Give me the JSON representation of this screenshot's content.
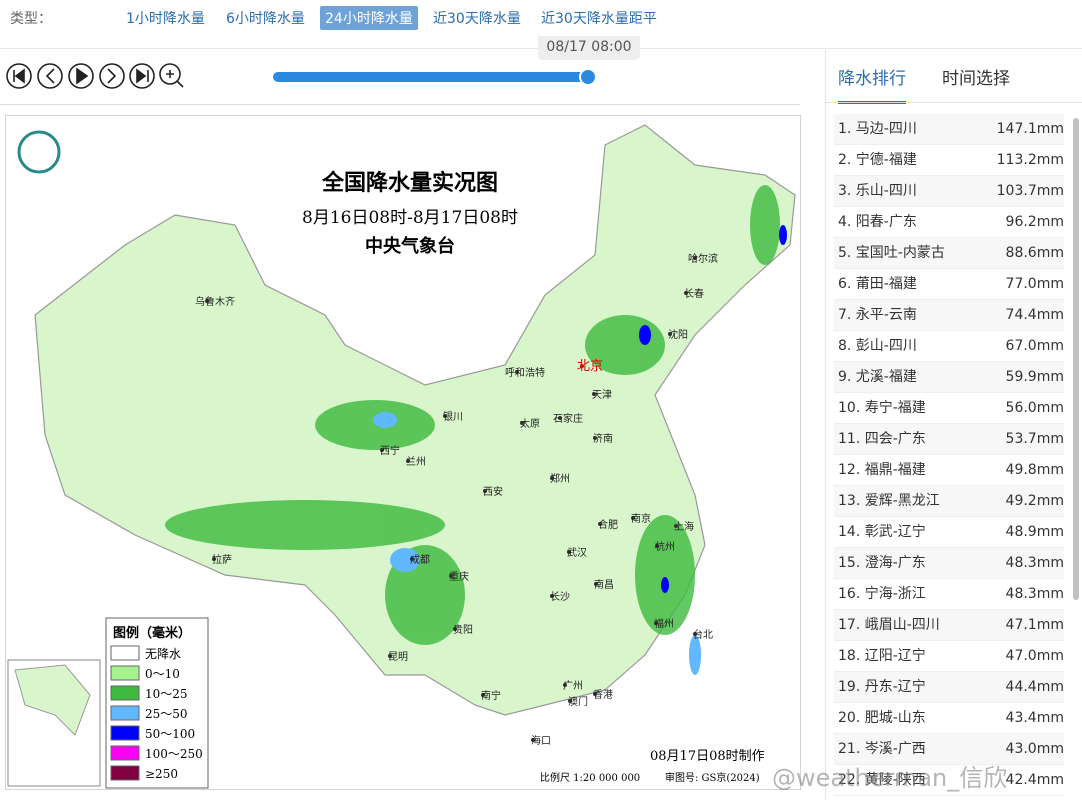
{
  "toolbar": {
    "label": "类型：",
    "tabs": [
      "1小时降水量",
      "6小时降水量",
      "24小时降水量",
      "近30天降水量",
      "近30天降水量距平"
    ],
    "active_tab": 2
  },
  "player": {
    "time": "08/17 08:00"
  },
  "map": {
    "title": "全国降水量实况图",
    "subtitle": "8月16日08时-8月17日08时",
    "agency": "中央气象台",
    "cities": [
      "乌鲁木齐",
      "哈尔滨",
      "长春",
      "沈阳",
      "北京",
      "呼和浩特",
      "天津",
      "银川",
      "太原",
      "石家庄",
      "济南",
      "西宁",
      "兰州",
      "西安",
      "郑州",
      "合肥",
      "南京",
      "上海",
      "拉萨",
      "成都",
      "武汉",
      "杭州",
      "重庆",
      "南昌",
      "长沙",
      "福州",
      "台北",
      "贵阳",
      "昆明",
      "南宁",
      "广州",
      "澳门",
      "香港",
      "海口"
    ],
    "legend": {
      "title": "图例（毫米）",
      "items": [
        {
          "label": "无降水",
          "color": "#ffffff"
        },
        {
          "label": "0～10",
          "color": "#a6f28f"
        },
        {
          "label": "10～25",
          "color": "#3dba3d"
        },
        {
          "label": "25～50",
          "color": "#61b8ff"
        },
        {
          "label": "50～100",
          "color": "#0000ff"
        },
        {
          "label": "100～250",
          "color": "#fa00fa"
        },
        {
          "label": "≥250",
          "color": "#800040"
        }
      ]
    },
    "made": "08月17日08时制作",
    "scale": "比例尺 1:20 000 000",
    "approval": "审图号: GS京(2024)"
  },
  "panel": {
    "tabs": [
      "降水排行",
      "时间选择"
    ],
    "active_tab": 0,
    "ranking": [
      [
        "1. 马边-四川",
        "147.1mm"
      ],
      [
        "2. 宁德-福建",
        "113.2mm"
      ],
      [
        "3. 乐山-四川",
        "103.7mm"
      ],
      [
        "4. 阳春-广东",
        "96.2mm"
      ],
      [
        "5. 宝国吐-内蒙古",
        "88.6mm"
      ],
      [
        "6. 莆田-福建",
        "77.0mm"
      ],
      [
        "7. 永平-云南",
        "74.4mm"
      ],
      [
        "8. 彭山-四川",
        "67.0mm"
      ],
      [
        "9. 尤溪-福建",
        "59.9mm"
      ],
      [
        "10. 寿宁-福建",
        "56.0mm"
      ],
      [
        "11. 四会-广东",
        "53.7mm"
      ],
      [
        "12. 福鼎-福建",
        "49.8mm"
      ],
      [
        "13. 爱辉-黑龙江",
        "49.2mm"
      ],
      [
        "14. 彰武-辽宁",
        "48.9mm"
      ],
      [
        "15. 澄海-广东",
        "48.3mm"
      ],
      [
        "16. 宁海-浙江",
        "48.3mm"
      ],
      [
        "17. 峨眉山-四川",
        "47.1mm"
      ],
      [
        "18. 辽阳-辽宁",
        "47.0mm"
      ],
      [
        "19. 丹东-辽宁",
        "44.4mm"
      ],
      [
        "20. 肥城-山东",
        "43.4mm"
      ],
      [
        "21. 岑溪-广西",
        "43.0mm"
      ],
      [
        "22. 黄陵-陕西",
        "42.4mm"
      ]
    ]
  },
  "watermark": "@weatherman_信欣"
}
